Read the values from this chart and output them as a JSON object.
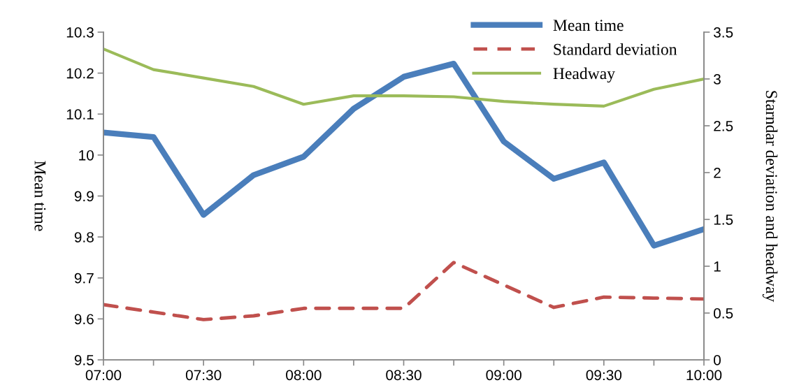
{
  "chart_data": {
    "type": "line",
    "ylabel": "Mean time",
    "y2label": "Starndar deviation and headway",
    "x": [
      7,
      7.25,
      7.5,
      7.75,
      8,
      8.25,
      8.5,
      8.75,
      9,
      9.25,
      9.5,
      9.75,
      10
    ],
    "xlim": [
      7,
      10
    ],
    "xticks": [
      {
        "value": 7,
        "label": "07:00"
      },
      {
        "value": 7.25,
        "label": null
      },
      {
        "value": 7.5,
        "label": "07:30"
      },
      {
        "value": 7.75,
        "label": null
      },
      {
        "value": 8,
        "label": "08:00"
      },
      {
        "value": 8.25,
        "label": null
      },
      {
        "value": 8.5,
        "label": "08:30"
      },
      {
        "value": 8.75,
        "label": null
      },
      {
        "value": 9,
        "label": "09:00"
      },
      {
        "value": 9.25,
        "label": null
      },
      {
        "value": 9.5,
        "label": "09:30"
      },
      {
        "value": 9.75,
        "label": null
      },
      {
        "value": 10,
        "label": "10:00"
      }
    ],
    "ylim": [
      9.5,
      10.3
    ],
    "yticks": [
      9.5,
      9.6,
      9.7,
      9.8,
      9.9,
      {
        "value": 10,
        "label": "10"
      },
      10.1,
      10.2,
      10.3
    ],
    "y2lim": [
      0,
      3.5
    ],
    "y2ticks": [
      0,
      0.5,
      1,
      1.5,
      2,
      2.5,
      3,
      3.5
    ],
    "series": [
      {
        "name": "Mean time",
        "color": "#4a7ebb",
        "line_style": "solid",
        "values": [
          10.055,
          10.044,
          9.854,
          9.951,
          9.996,
          10.113,
          10.191,
          10.223,
          10.033,
          9.942,
          9.982,
          9.779,
          9.819
        ]
      },
      {
        "name": "Standard deviation",
        "color": "#c0504d",
        "line_style": "dashed",
        "axis": "y2",
        "values": [
          0.59,
          0.51,
          0.43,
          0.47,
          0.55,
          0.55,
          0.55,
          1.04,
          0.8,
          0.56,
          0.67,
          0.66,
          0.65
        ]
      },
      {
        "name": "Headway",
        "color": "#9bbb59",
        "line_style": "solid",
        "axis": "y2",
        "values": [
          3.32,
          3.1,
          3.01,
          2.92,
          2.73,
          2.82,
          2.82,
          2.81,
          2.76,
          2.73,
          2.71,
          2.89,
          3.0
        ]
      }
    ],
    "marker": "none",
    "grid": false,
    "legend": "top right"
  }
}
